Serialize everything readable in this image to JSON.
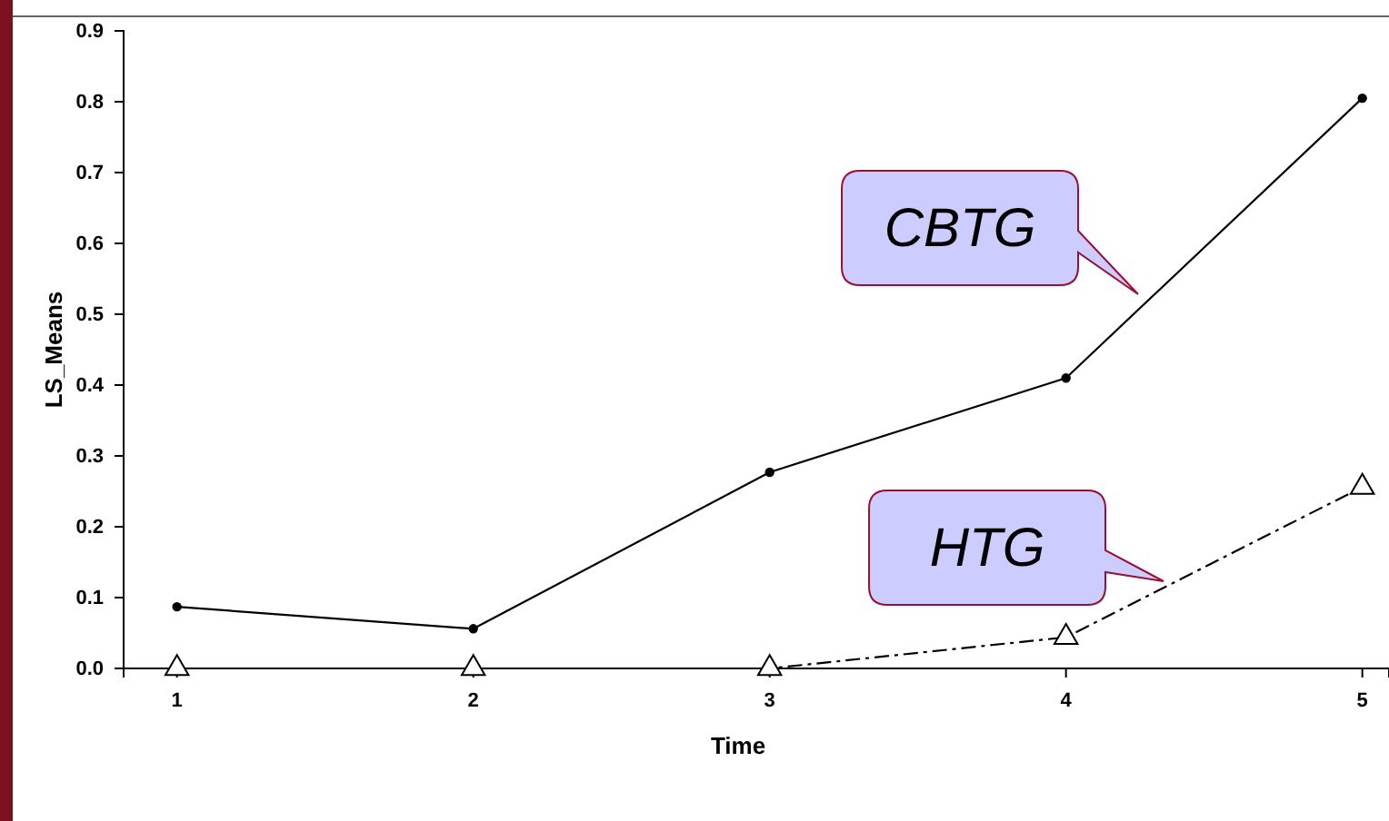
{
  "chart_data": {
    "type": "line",
    "xlabel": "Time",
    "ylabel": "LS_Means",
    "x": [
      1,
      2,
      3,
      4,
      5
    ],
    "xlim": [
      0.82,
      5.09
    ],
    "xticks": [
      1,
      2,
      3,
      4,
      5
    ],
    "ylim": [
      0,
      0.9
    ],
    "yticks": [
      {
        "value": 0,
        "label": "0.0"
      },
      0.1,
      0.2,
      0.3,
      0.4,
      0.5,
      0.6,
      0.7,
      0.8,
      0.9
    ],
    "series": [
      {
        "color": "#000000",
        "values": [
          0.087,
          0.056,
          0.277,
          0.41,
          0.805
        ],
        "marker": "circle",
        "line_style": "solid"
      },
      {
        "color": "#000000",
        "values": [
          0,
          0,
          0,
          0.044,
          0.256
        ],
        "marker": "triangle",
        "line_style": "dashed"
      }
    ],
    "annotations": [
      "CBTG",
      "HTG"
    ],
    "grid": false
  }
}
